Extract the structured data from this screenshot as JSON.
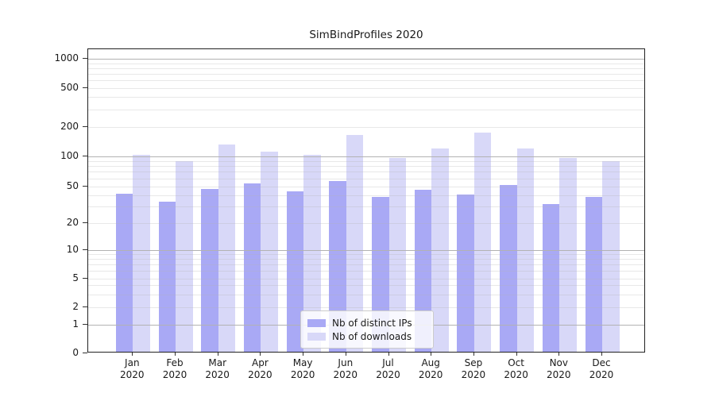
{
  "chart_data": {
    "type": "bar",
    "title": "SimBindProfiles 2020",
    "categories": [
      "Jan",
      "Feb",
      "Mar",
      "Apr",
      "May",
      "Jun",
      "Jul",
      "Aug",
      "Sep",
      "Oct",
      "Nov",
      "Dec"
    ],
    "year_label": "2020",
    "series": [
      {
        "name": "Nb of distinct IPs",
        "color": "#a9a9f5",
        "values": [
          40,
          33,
          45,
          51,
          42,
          54,
          37,
          44,
          39,
          50,
          31,
          37
        ]
      },
      {
        "name": "Nb of downloads",
        "color": "#d8d8f8",
        "values": [
          100,
          86,
          128,
          107,
          100,
          160,
          93,
          117,
          168,
          117,
          93,
          87
        ]
      }
    ],
    "yscale": "symlog",
    "ylim": [
      0,
      1000
    ],
    "yticks": [
      0,
      1,
      2,
      5,
      10,
      20,
      50,
      100,
      200,
      500,
      1000
    ],
    "grid": "both",
    "legend_position": "lower-center"
  }
}
